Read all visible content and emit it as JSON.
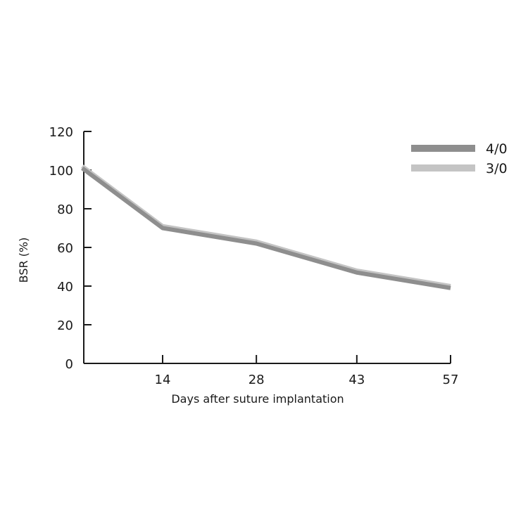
{
  "chart_data": {
    "type": "line",
    "title": "",
    "xlabel": "Days after suture implantation",
    "ylabel": "BSR (%)",
    "ylim": [
      0,
      120
    ],
    "yticks": [
      "0",
      "20",
      "40",
      "60",
      "80",
      "100",
      "120"
    ],
    "xlim": [
      0,
      57
    ],
    "xticks": [
      14,
      28,
      43,
      57
    ],
    "xtick_labels": [
      "14",
      "28",
      "43",
      "57"
    ],
    "grid": false,
    "legend_position": "top-right",
    "series": [
      {
        "name": "4/0",
        "color": "#8e8e8e",
        "x": [
          2,
          14,
          28,
          43,
          57
        ],
        "y": [
          101,
          70,
          62,
          47,
          39
        ]
      },
      {
        "name": "3/0",
        "color": "#c4c4c4",
        "x": [
          2,
          14,
          28,
          43,
          57
        ],
        "y": [
          102,
          71,
          63,
          48,
          40
        ]
      }
    ]
  }
}
